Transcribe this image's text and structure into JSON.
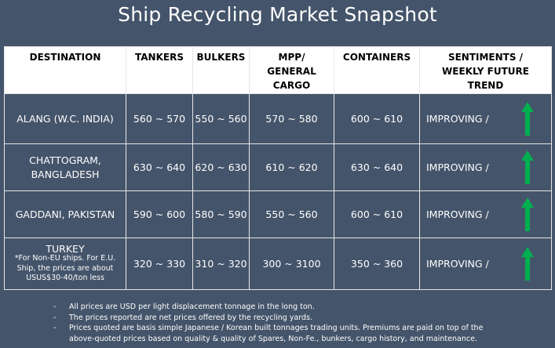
{
  "title": "Ship Recycling Market Snapshot",
  "headers": {
    "destination": "DESTINATION",
    "tankers": "TANKERS",
    "bulkers": "BULKERS",
    "mpp_line1": "MPP/",
    "mpp_line2": "GENERAL",
    "mpp_line3": "CARGO",
    "containers": "CONTAINERS",
    "sent_line1": "SENTIMENTS /",
    "sent_line2": "WEEKLY FUTURE",
    "sent_line3": "TREND"
  },
  "rows": [
    {
      "destination": "ALANG (W.C. INDIA)",
      "tankers": "560 ~ 570",
      "bulkers": "550 ~ 560",
      "mpp": "570 ~ 580",
      "containers": "600 ~ 610",
      "sentiment": "IMPROVING /",
      "trend_icon": "up-arrow-green"
    },
    {
      "destination_line1": "CHATTOGRAM,",
      "destination_line2": "BANGLADESH",
      "tankers": "630 ~ 640",
      "bulkers": "620 ~ 630",
      "mpp": "610 ~ 620",
      "containers": "630 ~ 640",
      "sentiment": "IMPROVING /",
      "trend_icon": "up-arrow-green"
    },
    {
      "destination": "GADDANI, PAKISTAN",
      "tankers": "590 ~ 600",
      "bulkers": "580 ~ 590",
      "mpp": "550 ~ 560",
      "containers": "600 ~ 610",
      "sentiment": "IMPROVING /",
      "trend_icon": "up-arrow-green"
    },
    {
      "destination": "TURKEY",
      "note_line1": "*For Non-EU ships. For E.U.",
      "note_line2": "Ship, the prices are about",
      "note_line3": "USUS$30-40/ton less",
      "tankers": "320 ~ 330",
      "bulkers": "310 ~ 320",
      "mpp": "300 ~ 3100",
      "containers": "350 ~ 360",
      "sentiment": "IMPROVING /",
      "trend_icon": "up-arrow-green"
    }
  ],
  "notes": {
    "dash": "-",
    "n1": "All prices are USD per light displacement tonnage in the long ton.",
    "n2": "The prices reported are net prices offered by the recycling yards.",
    "n3_line1": "Prices quoted are basis simple Japanese / Korean built tonnages trading units. Premiums are paid on top of the",
    "n3_line2": "above-quoted prices based on quality & quality of Spares, Non-Fe., bunkers, cargo history, and maintenance."
  },
  "colors": {
    "background": "#44546a",
    "header_bg": "#ffffff",
    "arrow": "#00b050"
  }
}
